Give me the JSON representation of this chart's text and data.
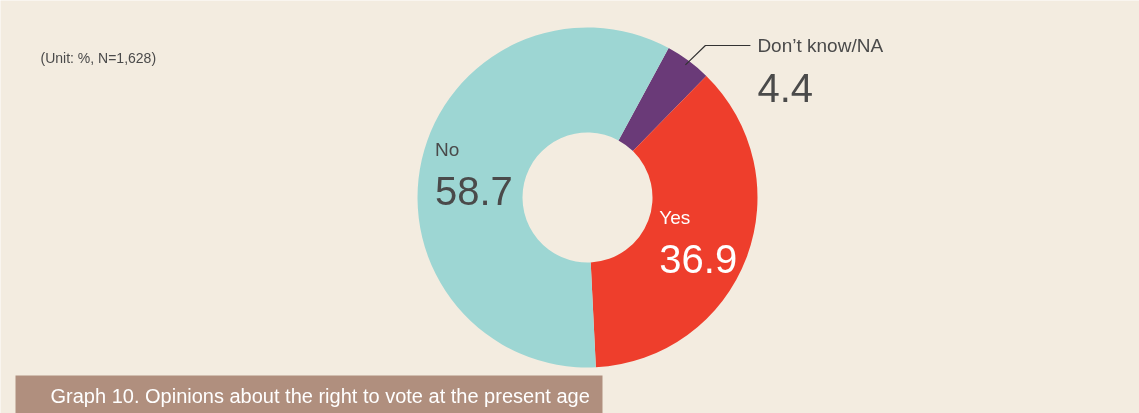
{
  "chart_data": {
    "type": "donut",
    "title": "Graph 10. Opinions about the right to vote at the present age",
    "categories": [
      "Don’t know/NA",
      "Yes",
      "No"
    ],
    "values": [
      4.4,
      36.9,
      58.7
    ],
    "colors": [
      "#6a3a78",
      "#ee3e2c",
      "#9dd6d3"
    ],
    "data_labels": true,
    "annotations": [
      "(Unit: %, N=1,628)"
    ]
  }
}
